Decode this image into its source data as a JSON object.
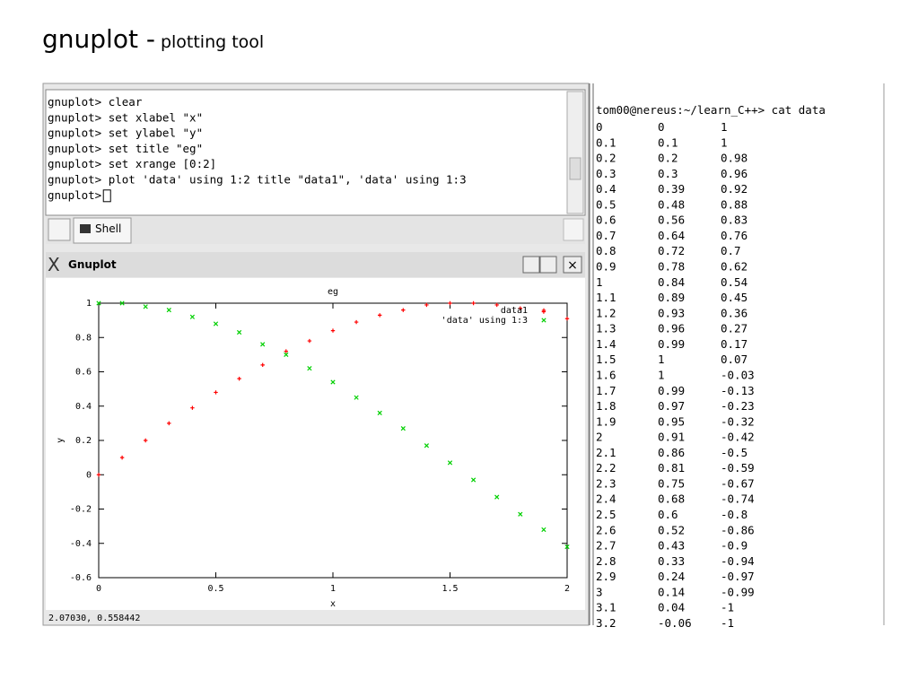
{
  "heading": {
    "main": "gnuplot -",
    "sub": "plotting tool"
  },
  "shell": {
    "lines": [
      "gnuplot> clear",
      "gnuplot> set xlabel \"x\"",
      "gnuplot> set ylabel \"y\"",
      "gnuplot> set title \"eg\"",
      "gnuplot> set xrange [0:2]",
      "gnuplot> plot 'data' using 1:2 title \"data1\", 'data' using 1:3",
      "gnuplot> "
    ],
    "tab": "Shell"
  },
  "window": {
    "title": "Gnuplot",
    "status": "2.07030,  0.558442"
  },
  "chart_data": {
    "type": "scatter",
    "title": "eg",
    "x_label": "x",
    "y_label": "y",
    "x": [
      0,
      0.1,
      0.2,
      0.3,
      0.4,
      0.5,
      0.6,
      0.7,
      0.8,
      0.9,
      1,
      1.1,
      1.2,
      1.3,
      1.4,
      1.5,
      1.6,
      1.7,
      1.8,
      1.9,
      2
    ],
    "series": [
      {
        "name": "data1",
        "color": "#ff0000",
        "values": [
          0,
          0.1,
          0.2,
          0.3,
          0.39,
          0.48,
          0.56,
          0.64,
          0.72,
          0.78,
          0.84,
          0.89,
          0.93,
          0.96,
          0.99,
          1,
          1,
          0.99,
          0.97,
          0.95,
          0.91
        ]
      },
      {
        "name": "'data' using 1:3",
        "color": "#00d000",
        "values": [
          1,
          1,
          0.98,
          0.96,
          0.92,
          0.88,
          0.83,
          0.76,
          0.7,
          0.62,
          0.54,
          0.45,
          0.36,
          0.27,
          0.17,
          0.07,
          -0.03,
          -0.13,
          -0.23,
          -0.32,
          -0.42
        ]
      }
    ],
    "xlim": [
      0,
      2
    ],
    "xticks": [
      0,
      0.5,
      1,
      1.5,
      2
    ],
    "ylim": [
      -0.6,
      1
    ],
    "yticks": [
      -0.6,
      -0.4,
      -0.2,
      0,
      0.2,
      0.4,
      0.6,
      0.8,
      1
    ],
    "legend": "top-right"
  },
  "terminal": {
    "prompt": "tom00@nereus:~/learn_C++> cat data",
    "rows": [
      [
        "0",
        "0",
        "1"
      ],
      [
        "0.1",
        "0.1",
        "1"
      ],
      [
        "0.2",
        "0.2",
        "0.98"
      ],
      [
        "0.3",
        "0.3",
        "0.96"
      ],
      [
        "0.4",
        "0.39",
        "0.92"
      ],
      [
        "0.5",
        "0.48",
        "0.88"
      ],
      [
        "0.6",
        "0.56",
        "0.83"
      ],
      [
        "0.7",
        "0.64",
        "0.76"
      ],
      [
        "0.8",
        "0.72",
        "0.7"
      ],
      [
        "0.9",
        "0.78",
        "0.62"
      ],
      [
        "1",
        "0.84",
        "0.54"
      ],
      [
        "1.1",
        "0.89",
        "0.45"
      ],
      [
        "1.2",
        "0.93",
        "0.36"
      ],
      [
        "1.3",
        "0.96",
        "0.27"
      ],
      [
        "1.4",
        "0.99",
        "0.17"
      ],
      [
        "1.5",
        "1",
        "0.07"
      ],
      [
        "1.6",
        "1",
        "-0.03"
      ],
      [
        "1.7",
        "0.99",
        "-0.13"
      ],
      [
        "1.8",
        "0.97",
        "-0.23"
      ],
      [
        "1.9",
        "0.95",
        "-0.32"
      ],
      [
        "2",
        "0.91",
        "-0.42"
      ],
      [
        "2.1",
        "0.86",
        "-0.5"
      ],
      [
        "2.2",
        "0.81",
        "-0.59"
      ],
      [
        "2.3",
        "0.75",
        "-0.67"
      ],
      [
        "2.4",
        "0.68",
        "-0.74"
      ],
      [
        "2.5",
        "0.6",
        "-0.8"
      ],
      [
        "2.6",
        "0.52",
        "-0.86"
      ],
      [
        "2.7",
        "0.43",
        "-0.9"
      ],
      [
        "2.8",
        "0.33",
        "-0.94"
      ],
      [
        "2.9",
        "0.24",
        "-0.97"
      ],
      [
        "3",
        "0.14",
        "-0.99"
      ],
      [
        "3.1",
        "0.04",
        "-1"
      ],
      [
        "3.2",
        "-0.06",
        "-1"
      ]
    ]
  }
}
